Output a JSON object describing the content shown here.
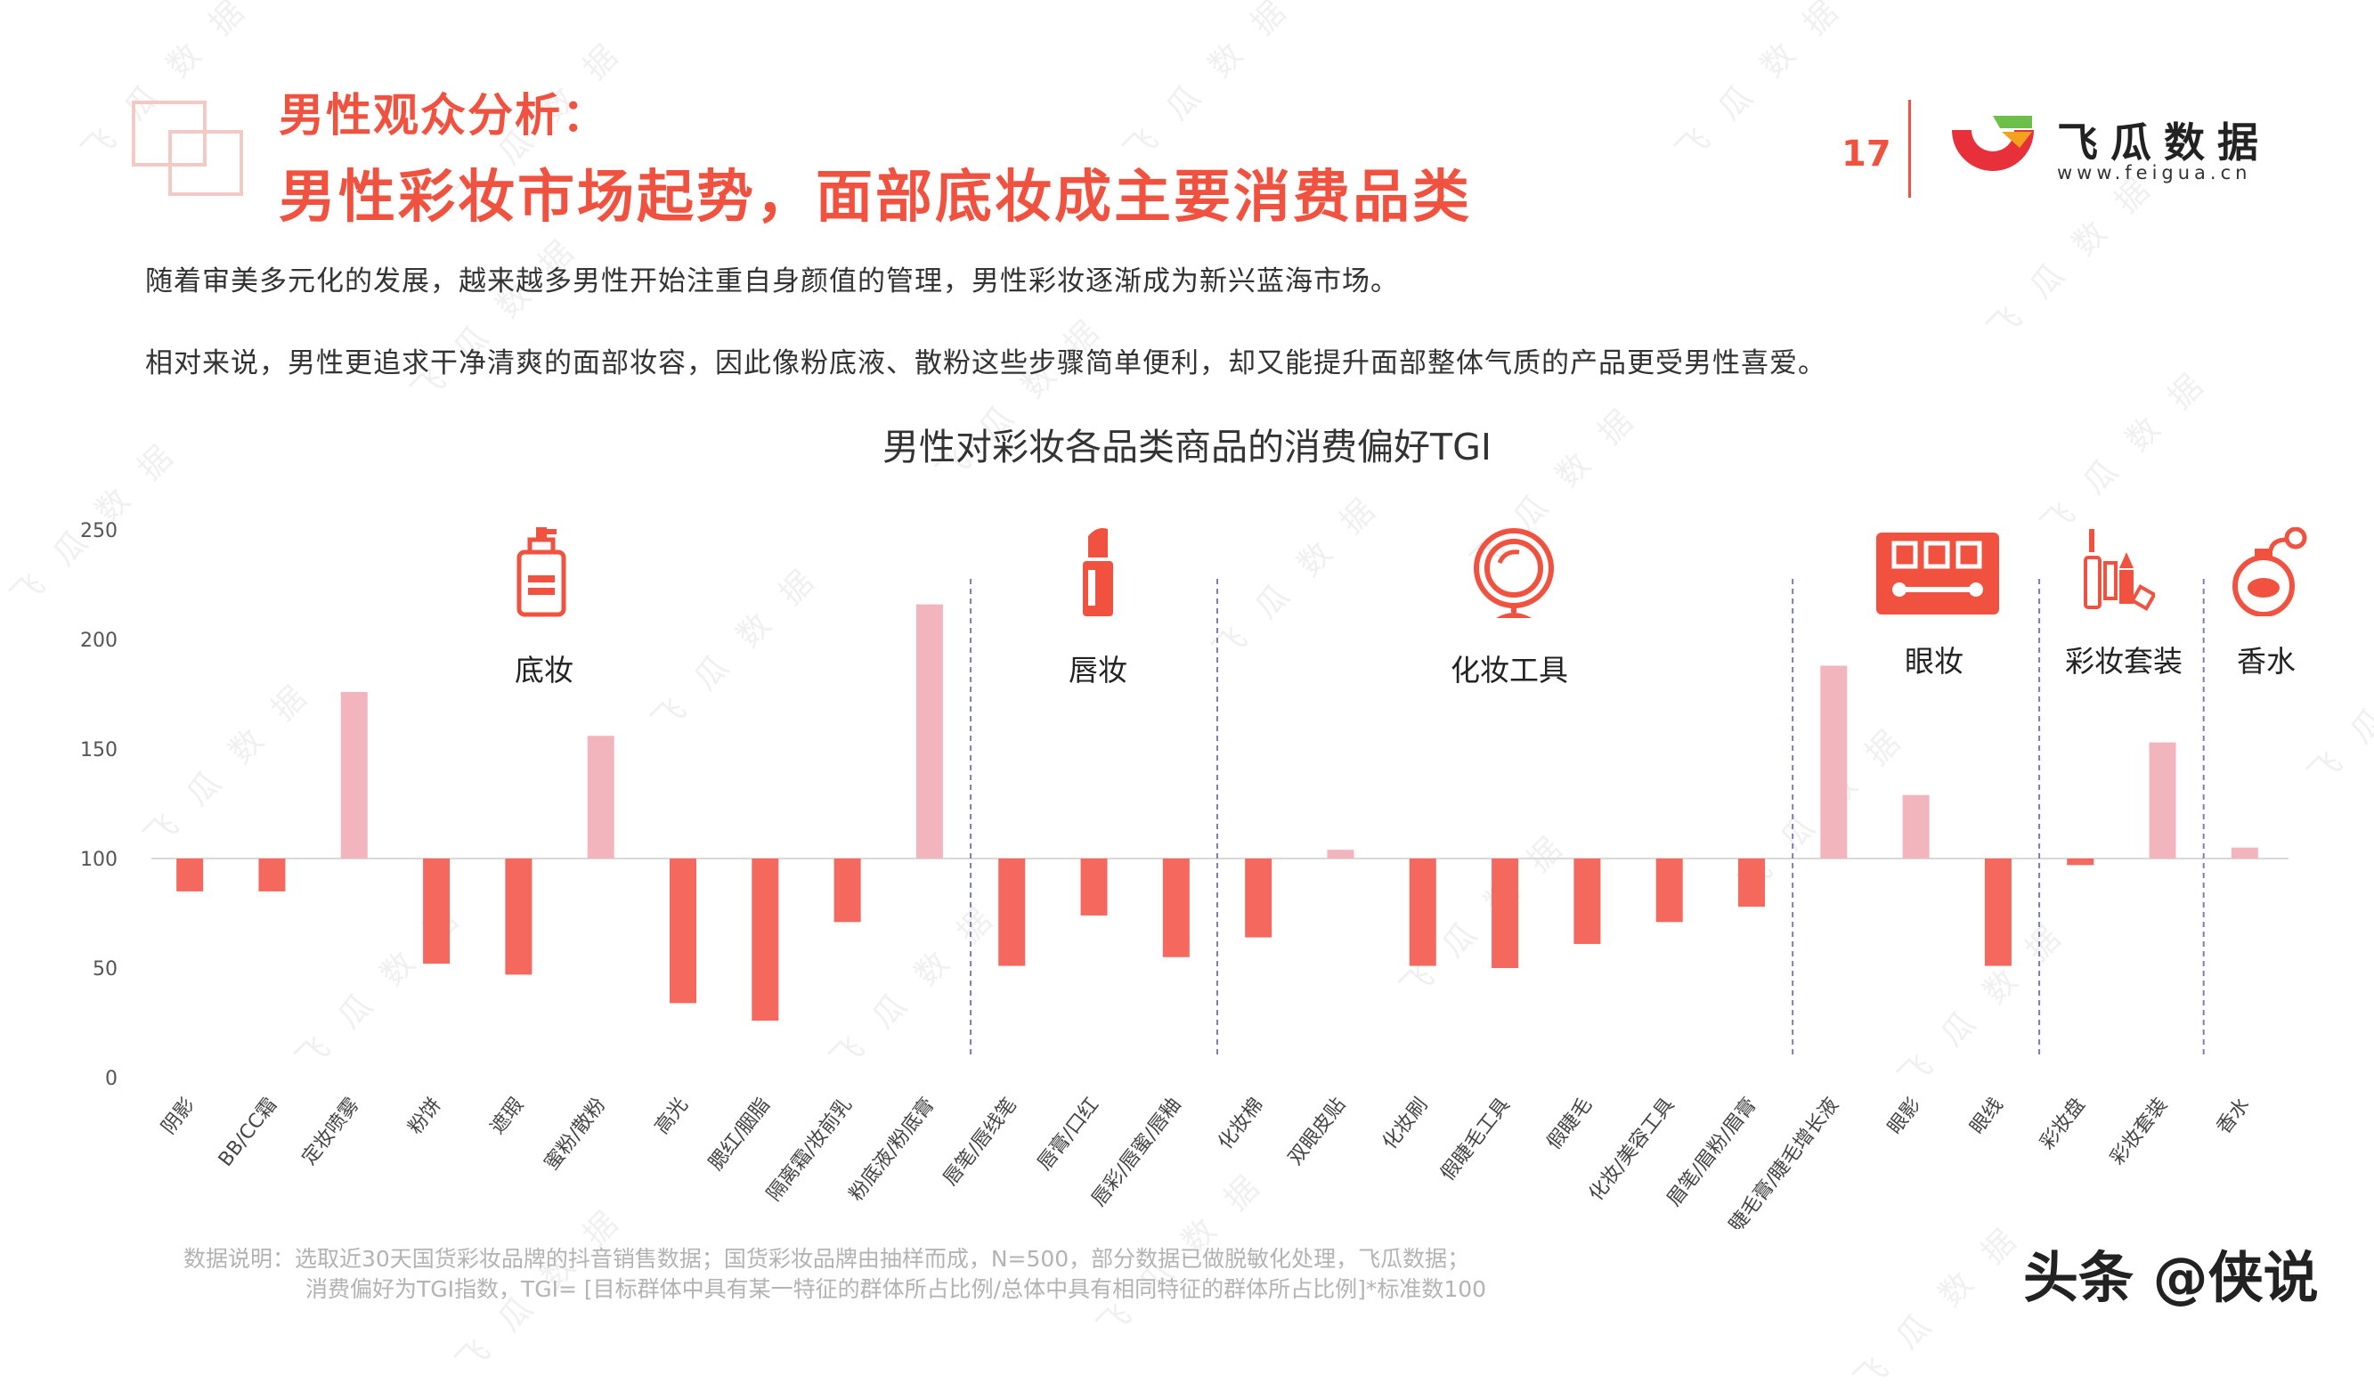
{
  "header": {
    "subtitle": "男性观众分析：",
    "title": "男性彩妆市场起势，面部底妆成主要消费品类",
    "page_number": "17",
    "brand_name": "飞瓜数据",
    "brand_url": "www.feigua.cn"
  },
  "description": [
    "随着审美多元化的发展，越来越多男性开始注重自身颜值的管理，男性彩妆逐渐成为新兴蓝海市场。",
    "相对来说，男性更追求干净清爽的面部妆容，因此像粉底液、散粉这些步骤简单便利，却又能提升面部整体气质的产品更受男性喜爱。"
  ],
  "chart_data": {
    "type": "bar",
    "title": "男性对彩妆各品类商品的消费偏好TGI",
    "baseline": 100,
    "ylim": [
      0,
      250
    ],
    "yticks": [
      "0",
      "50",
      "100",
      "150",
      "200",
      "250"
    ],
    "categories": [
      "阴影",
      "BB/CC霜",
      "定妆喷雾",
      "粉饼",
      "遮瑕",
      "蜜粉/散粉",
      "高光",
      "腮红/胭脂",
      "隔离霜/妆前乳",
      "粉底液/粉底膏",
      "唇笔/唇线笔",
      "唇膏/口红",
      "唇彩/唇蜜/唇釉",
      "化妆棉",
      "双眼皮贴",
      "化妆刷",
      "假睫毛工具",
      "假睫毛",
      "化妆/美容工具",
      "眉笔/眉粉/眉膏",
      "睫毛膏/睫毛增长液",
      "眼影",
      "眼线",
      "彩妆盘",
      "彩妆套装",
      "香水"
    ],
    "values": [
      85,
      85,
      176,
      52,
      47,
      156,
      34,
      26,
      71,
      216,
      51,
      74,
      55,
      64,
      104,
      51,
      50,
      61,
      71,
      78,
      188,
      129,
      51,
      97,
      153,
      105
    ],
    "groups": [
      {
        "name": "底妆",
        "icon": "foundation-bottle-icon"
      },
      {
        "name": "唇妆",
        "icon": "lipstick-icon"
      },
      {
        "name": "化妆工具",
        "icon": "mirror-icon"
      },
      {
        "name": "眼妆",
        "icon": "eyeshadow-palette-icon"
      },
      {
        "name": "彩妆套装",
        "icon": "makeup-set-icon"
      },
      {
        "name": "香水",
        "icon": "perfume-icon"
      }
    ],
    "colors": {
      "above": "#f2b4bd",
      "below": "#f4685d"
    }
  },
  "footnote": [
    "数据说明：选取近30天国货彩妆品牌的抖音销售数据；国货彩妆品牌由抽样而成，N=500，部分数据已做脱敏化处理，飞瓜数据；",
    "消费偏好为TGI指数，TGI= [目标群体中具有某一特征的群体所占比例/总体中具有相同特征的群体所占比例]*标准数100"
  ],
  "credit": "头条 @侠说",
  "watermark": "飞 瓜 数 据"
}
